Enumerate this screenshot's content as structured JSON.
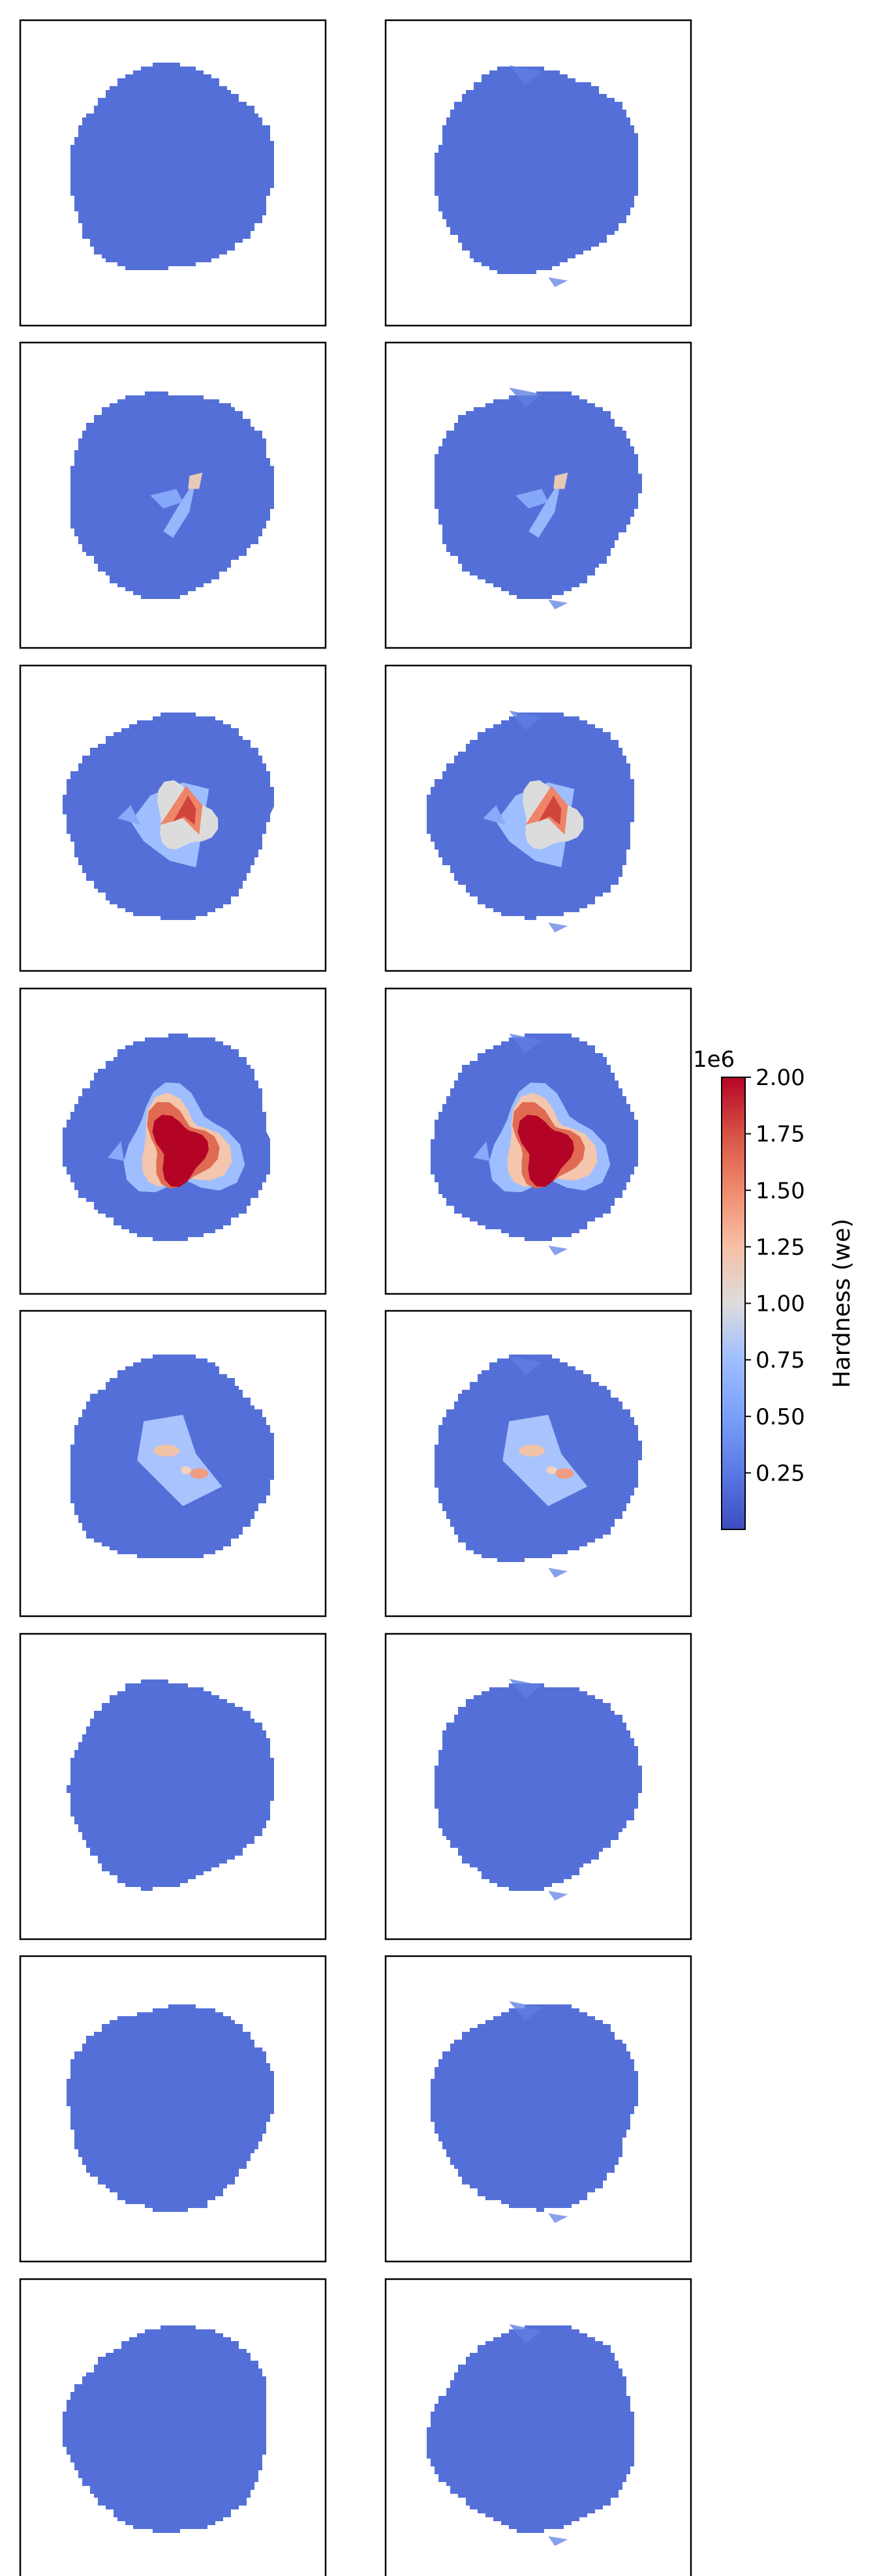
{
  "chart_data": {
    "type": "heatmap",
    "layout": {
      "rows": 8,
      "cols": 2,
      "colorbar": "right"
    },
    "colorbar": {
      "label": "Hardness (we)",
      "offset_text": "1e6",
      "cmap": "coolwarm",
      "min": 0,
      "max": 2000000,
      "ticks": [
        250000,
        500000,
        750000,
        1000000,
        1250000,
        1500000,
        1750000,
        2000000
      ],
      "tick_labels": [
        "0.25",
        "0.50",
        "0.75",
        "1.00",
        "1.25",
        "1.50",
        "1.75",
        "2.00"
      ]
    },
    "colors": {
      "background_value": "#5470d8",
      "low": "#3b4cc0",
      "mid": "#dddcdc",
      "high": "#b40426"
    },
    "panels": [
      {
        "row": 1,
        "col": 1,
        "peak_value": 0
      },
      {
        "row": 1,
        "col": 2,
        "peak_value": 0
      },
      {
        "row": 2,
        "col": 1,
        "peak_value": 1100000
      },
      {
        "row": 2,
        "col": 2,
        "peak_value": 1100000
      },
      {
        "row": 3,
        "col": 1,
        "peak_value": 1850000
      },
      {
        "row": 3,
        "col": 2,
        "peak_value": 1850000
      },
      {
        "row": 4,
        "col": 1,
        "peak_value": 2000000
      },
      {
        "row": 4,
        "col": 2,
        "peak_value": 2000000
      },
      {
        "row": 5,
        "col": 1,
        "peak_value": 1400000
      },
      {
        "row": 5,
        "col": 2,
        "peak_value": 1400000
      },
      {
        "row": 6,
        "col": 1,
        "peak_value": 0
      },
      {
        "row": 6,
        "col": 2,
        "peak_value": 0
      },
      {
        "row": 7,
        "col": 1,
        "peak_value": 0
      },
      {
        "row": 7,
        "col": 2,
        "peak_value": 0
      },
      {
        "row": 8,
        "col": 1,
        "peak_value": 0
      },
      {
        "row": 8,
        "col": 2,
        "peak_value": 0
      }
    ]
  }
}
